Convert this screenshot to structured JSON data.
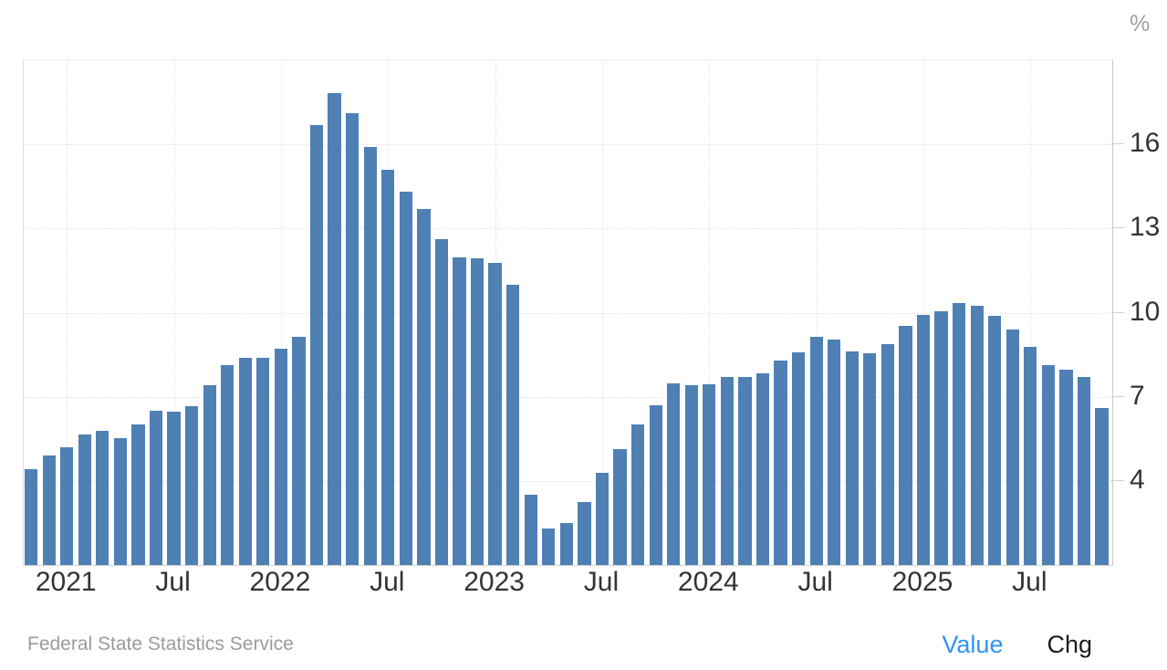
{
  "unit_label": "%",
  "footer": {
    "source": "Federal State Statistics Service",
    "value_label": "Value",
    "chg_label": "Chg"
  },
  "colors": {
    "bar": "#4e80b4",
    "gridline": "#e2e2e2",
    "axis_line": "#c9c9c9",
    "axis_text": "#333333",
    "unit_text": "#9aa1a8",
    "source_text": "#9b9b9b",
    "value_link": "#2e95f3",
    "chg_text": "#1b1b1b"
  },
  "chart_data": {
    "type": "bar",
    "title": "",
    "ylabel": "%",
    "xlabel": "",
    "source": "Federal State Statistics Service",
    "grid": "dotted",
    "legend_position": "none",
    "ylim": [
      1,
      19
    ],
    "y_ticks": [
      4,
      7,
      10,
      13,
      16
    ],
    "x_tick_labels": [
      "2021",
      "Jul",
      "2022",
      "Jul",
      "2023",
      "Jul",
      "2024",
      "Jul",
      "2025",
      "Jul"
    ],
    "x_tick_indices": [
      2,
      8,
      14,
      20,
      26,
      32,
      38,
      44,
      50,
      56
    ],
    "categories": [
      "Nov 2020",
      "Dec 2020",
      "Jan 2021",
      "Feb 2021",
      "Mar 2021",
      "Apr 2021",
      "May 2021",
      "Jun 2021",
      "Jul 2021",
      "Aug 2021",
      "Sep 2021",
      "Oct 2021",
      "Nov 2021",
      "Dec 2021",
      "Jan 2022",
      "Feb 2022",
      "Mar 2022",
      "Apr 2022",
      "May 2022",
      "Jun 2022",
      "Jul 2022",
      "Aug 2022",
      "Sep 2022",
      "Oct 2022",
      "Nov 2022",
      "Dec 2022",
      "Jan 2023",
      "Feb 2023",
      "Mar 2023",
      "Apr 2023",
      "May 2023",
      "Jun 2023",
      "Jul 2023",
      "Aug 2023",
      "Sep 2023",
      "Oct 2023",
      "Nov 2023",
      "Dec 2023",
      "Jan 2024",
      "Feb 2024",
      "Mar 2024",
      "Apr 2024",
      "May 2024",
      "Jun 2024",
      "Jul 2024",
      "Aug 2024",
      "Sep 2024",
      "Oct 2024",
      "Nov 2024",
      "Dec 2024",
      "Jan 2025",
      "Feb 2025",
      "Mar 2025",
      "Apr 2025",
      "May 2025",
      "Jun 2025",
      "Jul 2025",
      "Aug 2025",
      "Sep 2025",
      "Oct 2025",
      "Nov 2025"
    ],
    "values": [
      4.42,
      4.91,
      5.19,
      5.67,
      5.79,
      5.53,
      6.02,
      6.5,
      6.46,
      6.68,
      7.4,
      8.13,
      8.4,
      8.39,
      8.73,
      9.15,
      16.69,
      17.83,
      17.1,
      15.9,
      15.1,
      14.3,
      13.68,
      12.63,
      11.98,
      11.94,
      11.77,
      10.99,
      3.51,
      2.31,
      2.51,
      3.25,
      4.3,
      5.15,
      6.0,
      6.69,
      7.48,
      7.42,
      7.44,
      7.69,
      7.72,
      7.84,
      8.3,
      8.59,
      9.13,
      9.05,
      8.63,
      8.54,
      8.88,
      9.52,
      9.92,
      10.06,
      10.34,
      10.23,
      9.88,
      9.4,
      8.79,
      8.14,
      7.98,
      7.71,
      6.6
    ]
  }
}
